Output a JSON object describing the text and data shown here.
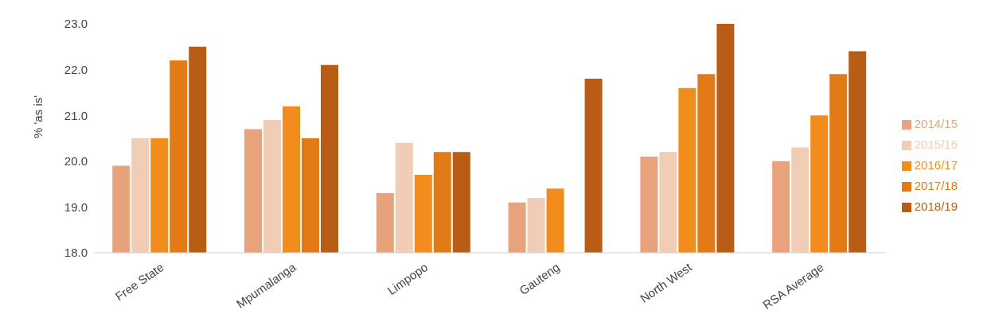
{
  "chart_data": {
    "type": "bar",
    "ylabel": "% 'as is'",
    "categories": [
      "Free State",
      "Mpumalanga",
      "Limpopo",
      "Gauteng",
      "North West",
      "RSA Average"
    ],
    "series": [
      {
        "name": "2014/15",
        "color": "#e8a27c",
        "values": [
          19.9,
          20.7,
          19.3,
          19.1,
          20.1,
          20.0
        ]
      },
      {
        "name": "2015/16",
        "color": "#f2cdb6",
        "values": [
          20.5,
          20.9,
          20.4,
          19.2,
          20.2,
          20.3
        ]
      },
      {
        "name": "2016/17",
        "color": "#f28c1c",
        "values": [
          20.5,
          21.2,
          19.7,
          19.4,
          21.6,
          21.0
        ]
      },
      {
        "name": "2017/18",
        "color": "#e27a16",
        "values": [
          22.2,
          20.5,
          20.2,
          null,
          21.9,
          21.9
        ]
      },
      {
        "name": "2018/19",
        "color": "#b85c16",
        "values": [
          22.5,
          22.1,
          20.2,
          21.8,
          23.0,
          22.4
        ]
      }
    ],
    "ylim": [
      18,
      23
    ],
    "yticks": [
      {
        "value": 18,
        "label": "18.0"
      },
      {
        "value": 19,
        "label": "19.0"
      },
      {
        "value": 20,
        "label": "20.0"
      },
      {
        "value": 21,
        "label": "21.0"
      },
      {
        "value": 22,
        "label": "22.0"
      },
      {
        "value": 23,
        "label": "23.0"
      }
    ],
    "grid": false,
    "legend": "right"
  }
}
